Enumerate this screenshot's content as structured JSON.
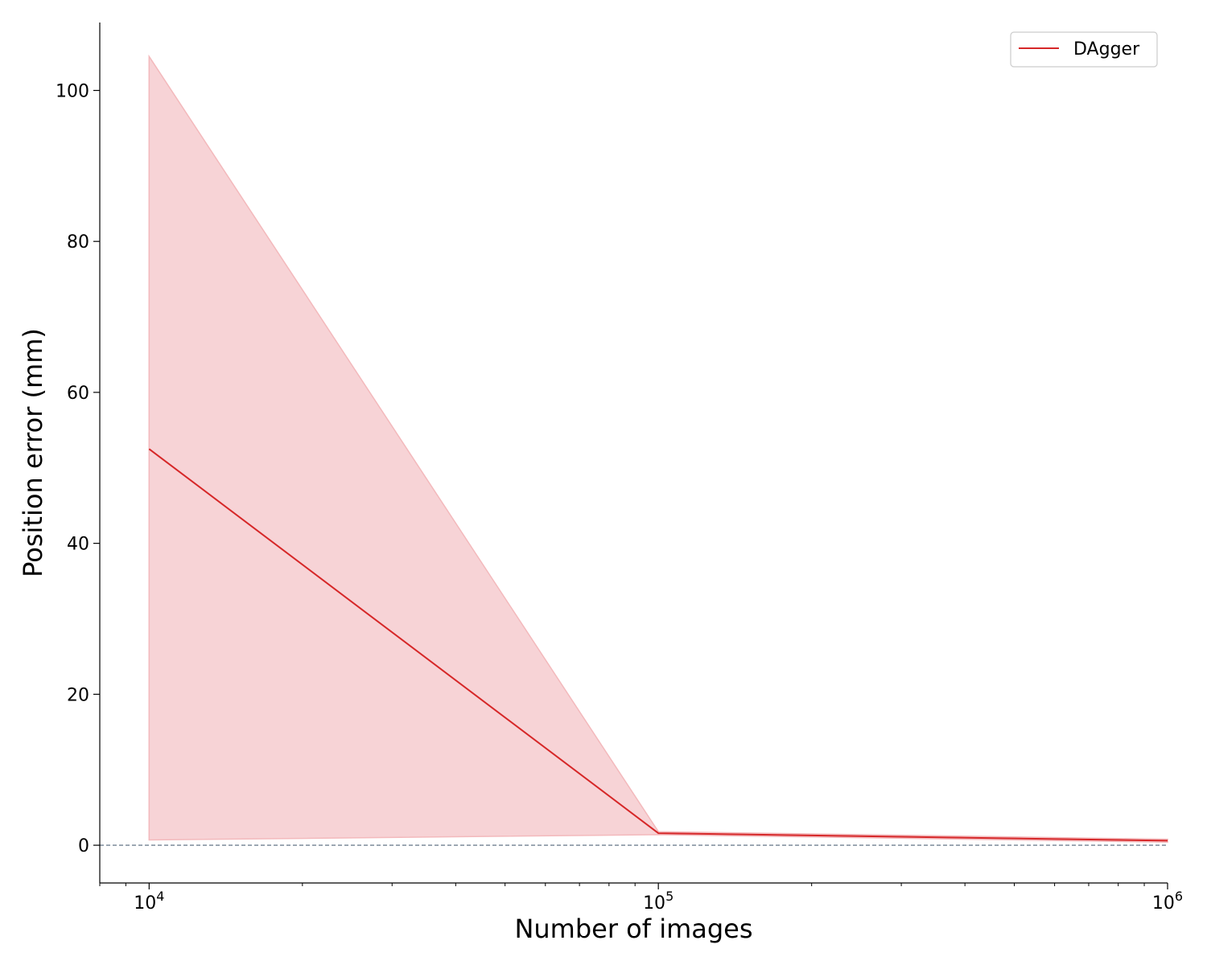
{
  "chart_data": {
    "type": "line",
    "title": "",
    "xlabel": "Number of images",
    "ylabel": "Position error (mm)",
    "xscale": "log",
    "xlim": [
      8000,
      1000000
    ],
    "ylim": [
      -5,
      109
    ],
    "grid": false,
    "legend_position": "top-right",
    "x_ticks": [
      {
        "value": 10000,
        "base": "10",
        "exp": "4"
      },
      {
        "value": 100000,
        "base": "10",
        "exp": "5"
      },
      {
        "value": 1000000,
        "base": "10",
        "exp": "6"
      }
    ],
    "y_ticks": [
      {
        "value": 0,
        "label": "0"
      },
      {
        "value": 20,
        "label": "20"
      },
      {
        "value": 40,
        "label": "40"
      },
      {
        "value": 60,
        "label": "60"
      },
      {
        "value": 80,
        "label": "80"
      },
      {
        "value": 100,
        "label": "100"
      }
    ],
    "reference_line": {
      "y": 0,
      "style": "dashed",
      "color": "#708090"
    },
    "series": [
      {
        "name": "DAgger",
        "color": "#d62728",
        "band_color": "#f7d3d6",
        "band_edge_color": "#f3b9bc",
        "x": [
          10000,
          100000,
          1000000
        ],
        "y": [
          52.5,
          1.6,
          0.6
        ],
        "y_lower": [
          0.7,
          1.4,
          0.4
        ],
        "y_upper": [
          104.5,
          1.8,
          0.8
        ]
      }
    ]
  }
}
